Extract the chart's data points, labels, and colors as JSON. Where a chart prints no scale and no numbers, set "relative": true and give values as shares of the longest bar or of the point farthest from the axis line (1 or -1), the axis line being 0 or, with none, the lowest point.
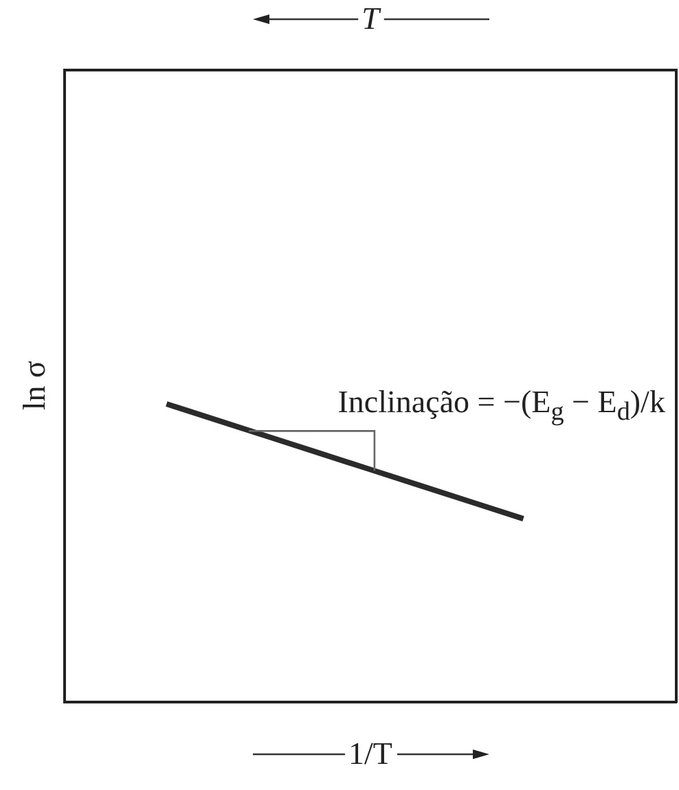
{
  "chart_data": {
    "type": "line",
    "relative": true,
    "xlabel": "1/T",
    "x2label": "T",
    "ylabel": "ln σ",
    "categories": [
      null,
      null,
      null,
      null,
      null,
      null,
      null,
      null,
      null,
      null,
      null,
      null,
      null
    ],
    "series": [
      {
        "color": "#2b2b2b",
        "values": [
          null,
          null,
          1,
          0.945,
          0.89,
          0.835,
          0.78,
          0.725,
          0.67,
          0.615,
          null,
          null,
          null
        ]
      }
    ],
    "annotations": [
      "Inclinação = −(E$_{g}$ − E$_{d}$)/k"
    ],
    "marker": "none",
    "line_style": "solid"
  }
}
